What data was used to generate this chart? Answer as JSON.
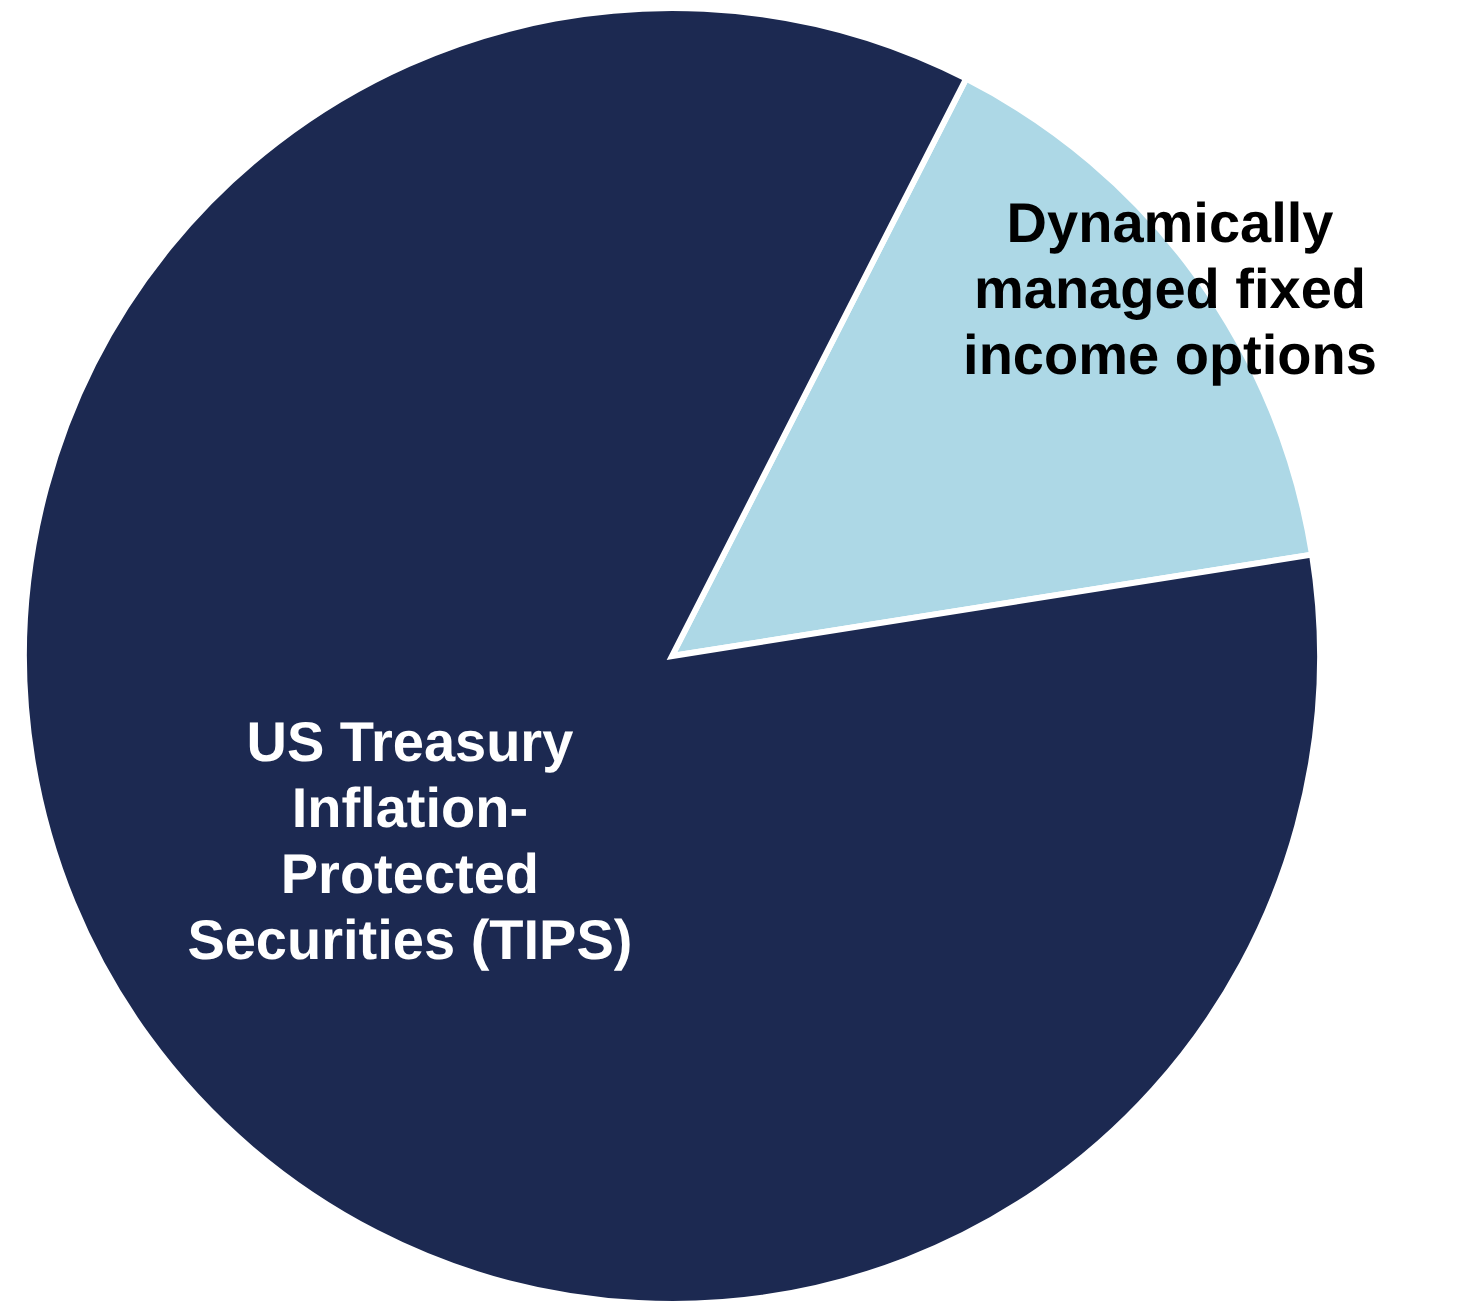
{
  "chart_data": {
    "type": "pie",
    "categories": [
      "Dynamically managed fixed income options",
      "US Treasury Inflation-Protected Securities (TIPS)"
    ],
    "values": [
      15,
      85
    ],
    "colors": [
      "#add8e6",
      "#1c2951"
    ]
  }
}
